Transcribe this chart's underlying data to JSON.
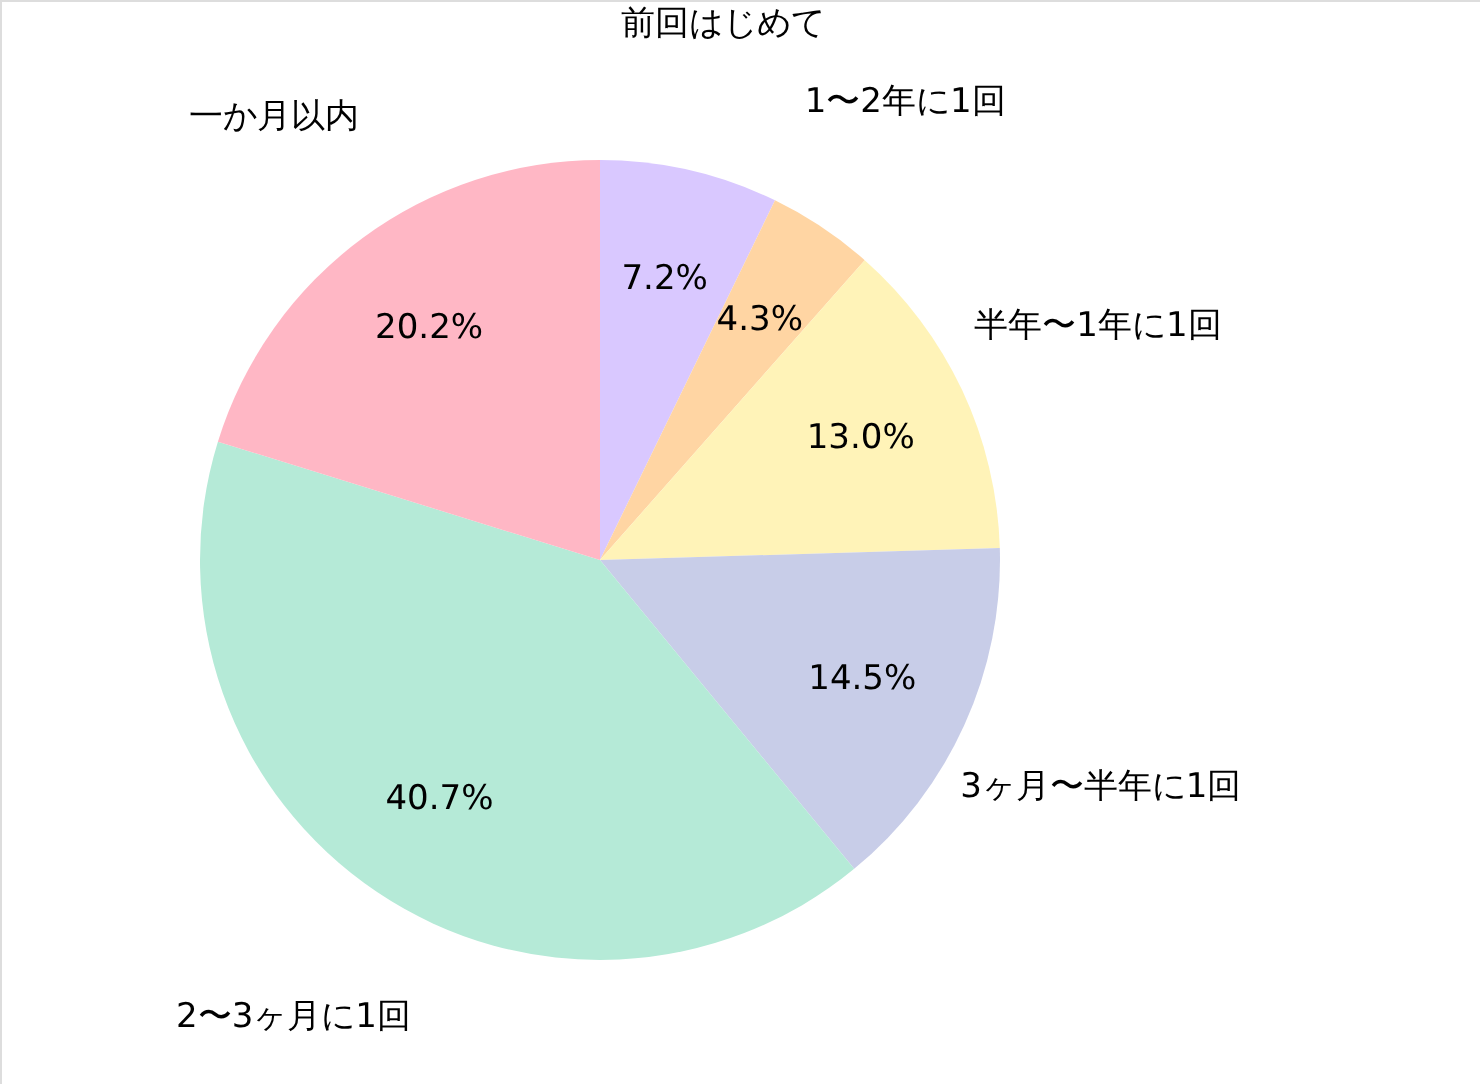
{
  "chart_data": {
    "type": "pie",
    "categories": [
      "前回はじめて",
      "1〜2年に1回",
      "半年〜1年に1回",
      "3ヶ月〜半年に1回",
      "2〜3ヶ月に1回",
      "一か月以内"
    ],
    "values": [
      7.2,
      4.3,
      13.0,
      14.5,
      40.7,
      20.2
    ],
    "value_labels": [
      "7.2%",
      "4.3%",
      "13.0%",
      "14.5%",
      "40.7%",
      "20.2%"
    ],
    "colors": [
      "#d9c8ff",
      "#ffd5a3",
      "#fff3b8",
      "#c8cde8",
      "#b5ead7",
      "#ffb7c5"
    ]
  }
}
